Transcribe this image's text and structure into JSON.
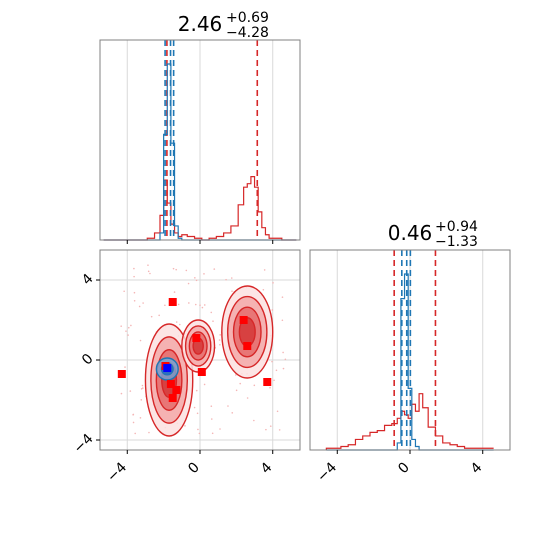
{
  "colors": {
    "red": "#d62728",
    "blue": "#1f77b4",
    "marker_red": "#ff0000",
    "marker_blue": "#0000ff",
    "grid": "#d9d9d9",
    "axis": "#808080"
  },
  "titles": {
    "p1": {
      "value": "2.46",
      "upper": "+0.69",
      "lower": "−4.28"
    },
    "p2": {
      "value": "0.46",
      "upper": "+0.94",
      "lower": "−1.33"
    }
  },
  "chart_data": [
    {
      "type": "histogram",
      "panel": "marginal-x",
      "xlim": [
        -5.5,
        5.5
      ],
      "grid": true,
      "bin_centers": [
        -5.1,
        -4.7,
        -4.3,
        -3.9,
        -3.5,
        -3.1,
        -2.7,
        -2.3,
        -2.1,
        -1.9,
        -1.7,
        -1.5,
        -1.3,
        -1.1,
        -0.9,
        -0.5,
        -0.1,
        0.3,
        0.7,
        1.1,
        1.5,
        1.9,
        2.3,
        2.5,
        2.7,
        2.9,
        3.1,
        3.3,
        3.5,
        3.7,
        3.9,
        4.3,
        4.7,
        5.1
      ],
      "series": [
        {
          "color": "red",
          "values": [
            0,
            0,
            0,
            0,
            0,
            0,
            1,
            4,
            14,
            34,
            21,
            9,
            4,
            2,
            3,
            2,
            1,
            0,
            1,
            2,
            4,
            8,
            20,
            30,
            32,
            36,
            30,
            16,
            7,
            3,
            1,
            1,
            0,
            0
          ],
          "quantile_lines": [
            -1.82,
            3.15
          ]
        },
        {
          "color": "blue",
          "values": [
            0,
            0,
            0,
            0,
            0,
            0,
            0,
            0,
            4,
            60,
            100,
            55,
            8,
            1,
            0,
            0,
            0,
            0,
            0,
            0,
            0,
            0,
            0,
            0,
            0,
            0,
            0,
            0,
            0,
            0,
            0,
            0,
            0,
            0
          ],
          "quantile_lines": [
            -1.92,
            -1.62,
            -1.45
          ]
        }
      ],
      "ticks": [
        -4,
        0,
        4
      ]
    },
    {
      "type": "scatter",
      "panel": "joint",
      "xlim": [
        -5.5,
        5.5
      ],
      "ylim": [
        -4.5,
        5.5
      ],
      "grid": true,
      "x_ticks": [
        "−4",
        "0",
        "4"
      ],
      "y_ticks": [
        "−4",
        "0",
        "4"
      ],
      "red_contours": [
        {
          "center": [
            -1.7,
            -1.0
          ],
          "radii": [
            1.3,
            2.8
          ]
        },
        {
          "center": [
            2.6,
            1.4
          ],
          "radii": [
            1.4,
            2.3
          ]
        },
        {
          "center": [
            -0.1,
            0.7
          ],
          "radii": [
            0.9,
            1.3
          ]
        }
      ],
      "blue_contour": {
        "center": [
          -1.8,
          -0.45
        ],
        "radii": [
          0.6,
          0.55
        ]
      },
      "red_points": [
        [
          -4.3,
          -0.7
        ],
        [
          -1.5,
          2.9
        ],
        [
          -1.6,
          -1.2
        ],
        [
          -1.3,
          -1.5
        ],
        [
          -1.5,
          -1.9
        ],
        [
          -0.2,
          1.1
        ],
        [
          0.1,
          -0.6
        ],
        [
          2.4,
          2.0
        ],
        [
          2.6,
          0.7
        ],
        [
          3.7,
          -1.1
        ],
        [
          -1.9,
          -0.3
        ]
      ],
      "blue_points": [
        [
          -1.8,
          -0.4
        ]
      ]
    },
    {
      "type": "histogram",
      "panel": "marginal-y",
      "xlim": [
        -5.5,
        5.5
      ],
      "grid": true,
      "bin_centers": [
        -4.4,
        -4.0,
        -3.6,
        -3.2,
        -2.8,
        -2.4,
        -2.0,
        -1.6,
        -1.2,
        -0.8,
        -0.6,
        -0.4,
        -0.2,
        0.0,
        0.2,
        0.4,
        0.6,
        0.8,
        1.2,
        1.6,
        2.0,
        2.4,
        2.8,
        3.2,
        3.6,
        4.0,
        4.4
      ],
      "series": [
        {
          "color": "red",
          "values": [
            1,
            1,
            2,
            3,
            6,
            8,
            10,
            11,
            14,
            15,
            18,
            22,
            20,
            18,
            26,
            22,
            32,
            24,
            13,
            8,
            4,
            3,
            2,
            1,
            1,
            1,
            1
          ],
          "quantile_lines": [
            -0.87,
            1.4
          ]
        },
        {
          "color": "blue",
          "values": [
            0,
            0,
            0,
            0,
            0,
            0,
            0,
            0,
            0,
            0,
            4,
            86,
            100,
            35,
            6,
            2,
            0,
            0,
            0,
            0,
            0,
            0,
            0,
            0,
            0,
            0,
            0
          ],
          "quantile_lines": [
            -0.45,
            -0.18,
            0.02
          ]
        }
      ],
      "ticks": [
        -4,
        0,
        4
      ]
    }
  ]
}
